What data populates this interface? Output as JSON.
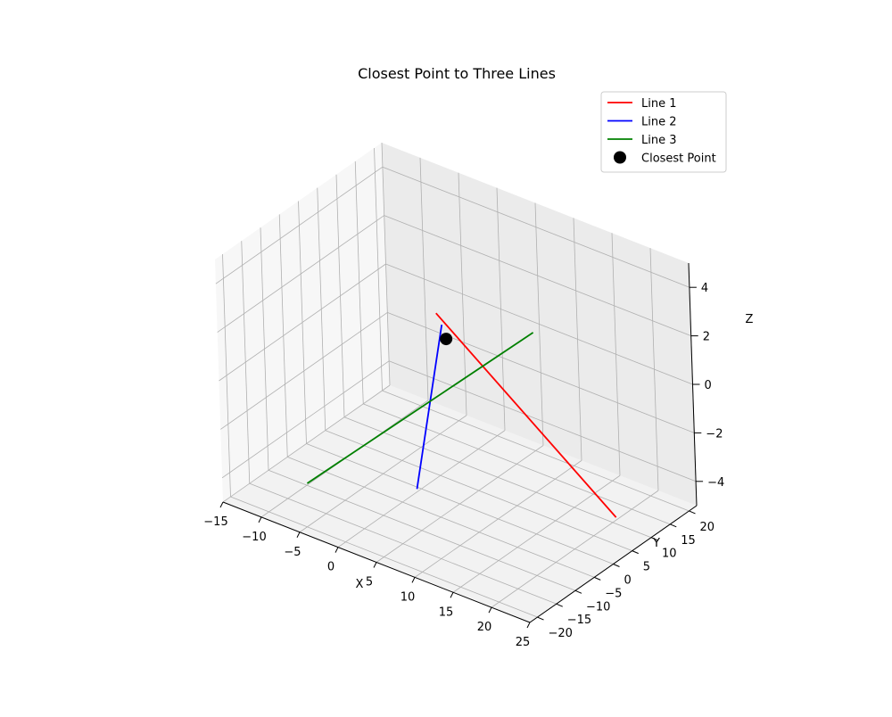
{
  "chart_data": {
    "type": "line3d",
    "title": "Closest Point to Three Lines",
    "xlabel": "X",
    "ylabel": "Y",
    "zlabel": "Z",
    "xlim": [
      -15,
      25
    ],
    "ylim": [
      -22,
      22
    ],
    "zlim": [
      -5,
      5
    ],
    "xticks": [
      -15,
      -10,
      -5,
      0,
      5,
      10,
      15,
      20,
      25
    ],
    "yticks": [
      -20,
      -15,
      -10,
      -5,
      0,
      5,
      10,
      15,
      20
    ],
    "zticks": [
      -4,
      -2,
      0,
      2,
      4
    ],
    "grid": true,
    "legend_position": "top-right",
    "series": [
      {
        "name": "Line 1",
        "kind": "line",
        "color": "#ff0000",
        "points": [
          [
            7.5,
            -9.4,
            4.2
          ],
          [
            24.4,
            2.3,
            -3.4
          ]
        ]
      },
      {
        "name": "Line 2",
        "kind": "line",
        "color": "#0000ff",
        "points": [
          [
            3.2,
            -7.4,
            -3.8
          ],
          [
            5.8,
            -4.7,
            3.0
          ]
        ]
      },
      {
        "name": "Line 3",
        "kind": "line",
        "color": "#008000",
        "points": [
          [
            -10.2,
            -9.5,
            -5.0
          ],
          [
            12.3,
            6.1,
            2.3
          ]
        ]
      },
      {
        "name": "Closest Point",
        "kind": "point",
        "color": "#000000",
        "points": [
          [
            5.5,
            -3.1,
            2.2
          ]
        ]
      }
    ]
  }
}
